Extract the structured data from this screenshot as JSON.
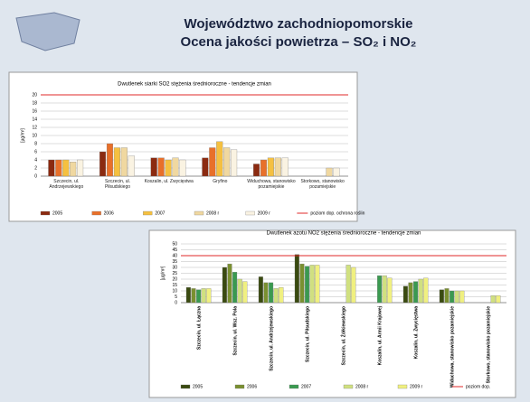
{
  "slide": {
    "title_line1": "Województwo zachodniopomorskie",
    "title_line2": "Ocena jakości powietrza – SO₂ i NO₂"
  },
  "chart_data": [
    {
      "type": "bar",
      "title": "Dwutlenek siarki SO2 stężenia średnioroczne - tendencje zmian",
      "ylabel": "[µg/m³]",
      "categories": [
        "Szczecin, ul. Andrzejewskiego",
        "Szczecin, ul. Piłsudskiego",
        "Koszalin, ul. Zwycięstwa",
        "Gryfino",
        "Widuchowa, stanowisko pozamiejskie",
        "Storkowo, stanowisko pozamiejskie"
      ],
      "series": [
        {
          "name": "2005",
          "color": "#8b2a10",
          "values": [
            4,
            6,
            4.5,
            4.5,
            3,
            null
          ]
        },
        {
          "name": "2006",
          "color": "#e8702a",
          "values": [
            4,
            8,
            4.5,
            7,
            4,
            null
          ]
        },
        {
          "name": "2007",
          "color": "#f5c040",
          "values": [
            4,
            7,
            4,
            8.5,
            4.5,
            null
          ]
        },
        {
          "name": "2008 r",
          "color": "#f0d8a0",
          "values": [
            3.5,
            7,
            4.5,
            7,
            4.5,
            2
          ]
        },
        {
          "name": "2009 r",
          "color": "#faf3e2",
          "values": [
            4,
            5,
            4,
            6.5,
            4.5,
            2
          ]
        }
      ],
      "limit": {
        "name": "poziom dop. ochrona roślin",
        "value": 20,
        "color": "#e02828"
      },
      "ylim": [
        0,
        20
      ],
      "yticks": [
        0,
        2,
        4,
        6,
        8,
        10,
        12,
        14,
        16,
        18,
        20
      ],
      "grid": true
    },
    {
      "type": "bar",
      "title": "Dwutlenek azotu NO2 stężenia średnioroczne - tendencje zmian",
      "ylabel": "[µg/m³]",
      "categories": [
        "Szczecin, ul. Łączna",
        "Szczecin, ul. Wsz. Pola",
        "Szczecin, ul. Andrzejewskiego",
        "Szczecin, ul. Piłsudskiego",
        "Szczecin, ul. Żółkiewskiego",
        "Koszalin, ul. Armii Krajowej",
        "Koszalin, ul. Zwycięstwa",
        "Widuchowa, stanowisko pozamiejskie",
        "Storkowo, stanowisko pozamiejskie"
      ],
      "series": [
        {
          "name": "2005",
          "color": "#3a4a10",
          "values": [
            13,
            30,
            22,
            41,
            null,
            null,
            14,
            11,
            null
          ]
        },
        {
          "name": "2006",
          "color": "#7a9030",
          "values": [
            12,
            33,
            17,
            33,
            null,
            null,
            17,
            12,
            null
          ]
        },
        {
          "name": "2007",
          "color": "#3a9a50",
          "values": [
            11,
            26,
            17,
            31,
            null,
            23,
            18,
            10,
            null
          ]
        },
        {
          "name": "2008 r",
          "color": "#d0e080",
          "values": [
            12,
            20,
            12,
            32,
            32,
            23,
            20,
            10,
            6
          ]
        },
        {
          "name": "2009 r",
          "color": "#f0f080",
          "values": [
            12,
            18,
            13,
            32,
            30,
            21,
            21,
            10,
            6
          ]
        }
      ],
      "limit": {
        "name": "poziom dop.",
        "value": 40,
        "color": "#e02828"
      },
      "ylim": [
        0,
        50
      ],
      "yticks": [
        0,
        5,
        10,
        15,
        20,
        25,
        30,
        35,
        40,
        45,
        50
      ],
      "grid": true
    }
  ]
}
